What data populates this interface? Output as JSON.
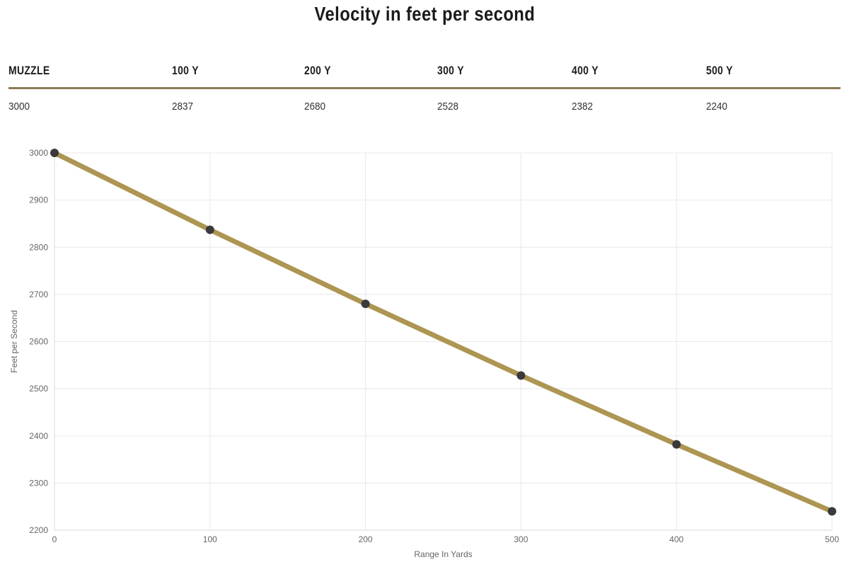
{
  "page": {
    "title": "Velocity in feet per second"
  },
  "table": {
    "headers": [
      "MUZZLE",
      "100 Y",
      "200 Y",
      "300 Y",
      "400 Y",
      "500 Y"
    ],
    "values": [
      "3000",
      "2837",
      "2680",
      "2528",
      "2382",
      "2240"
    ]
  },
  "chart_data": {
    "type": "line",
    "title": "Velocity in feet per second",
    "xlabel": "Range In Yards",
    "ylabel": "Feet per Second",
    "x": [
      0,
      100,
      200,
      300,
      400,
      500
    ],
    "series": [
      {
        "name": "Velocity in feet per second",
        "values": [
          3000,
          2837,
          2680,
          2528,
          2382,
          2240
        ]
      }
    ],
    "xlim": [
      0,
      500
    ],
    "ylim": [
      2200,
      3000
    ],
    "x_ticks": [
      0,
      100,
      200,
      300,
      400,
      500
    ],
    "y_ticks": [
      2200,
      2300,
      2400,
      2500,
      2600,
      2700,
      2800,
      2900,
      3000
    ],
    "grid": true,
    "legend": false,
    "colors": {
      "line": "#ad9552",
      "point": "#3a3a3c",
      "grid": "#e8e8e8",
      "axis": "#d9d9d9",
      "tick_text": "#666666",
      "axis_title_text": "#666666",
      "divider": "#8b7c52",
      "title_text": "#1a1a1a",
      "value_text": "#333333"
    }
  }
}
